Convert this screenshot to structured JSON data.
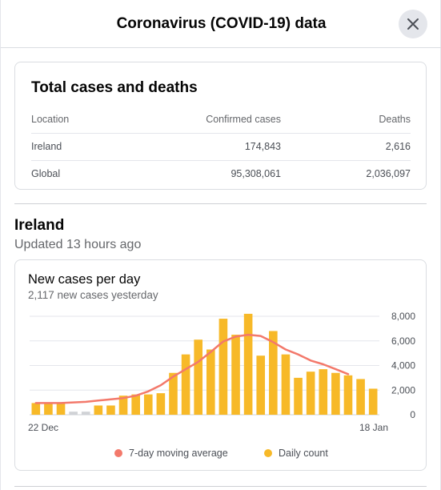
{
  "header": {
    "title": "Coronavirus (COVID-19) data",
    "close_icon": "close-icon"
  },
  "totals": {
    "title": "Total cases and deaths",
    "columns": [
      "Location",
      "Confirmed cases",
      "Deaths"
    ],
    "rows": [
      {
        "location": "Ireland",
        "confirmed": "174,843",
        "deaths": "2,616"
      },
      {
        "location": "Global",
        "confirmed": "95,308,061",
        "deaths": "2,036,097"
      }
    ]
  },
  "region": {
    "name": "Ireland",
    "updated": "Updated 13 hours ago"
  },
  "chart": {
    "title": "New cases per day",
    "subtitle": "2,117 new cases yesterday",
    "legend_avg": "7-day moving average",
    "legend_daily": "Daily count"
  },
  "chart_data": {
    "type": "bar",
    "title": "New cases per day",
    "x_start_label": "22 Dec",
    "x_end_label": "18 Jan",
    "ylim": [
      0,
      8000
    ],
    "y_ticks": [
      0,
      2000,
      4000,
      6000,
      8000
    ],
    "y_tick_labels": [
      "0",
      "2,000",
      "4,000",
      "6,000",
      "8,000"
    ],
    "grid": true,
    "legend_position": "bottom",
    "colors": {
      "daily": "#f7b928",
      "daily_missing": "#d0d2d6",
      "avg": "#f3796b"
    },
    "series": [
      {
        "name": "Daily count",
        "values": [
          950,
          950,
          950,
          250,
          250,
          750,
          750,
          1550,
          1650,
          1650,
          1750,
          3400,
          4900,
          6100,
          5300,
          7800,
          6500,
          8200,
          4800,
          6800,
          4900,
          3000,
          3500,
          3700,
          3400,
          3200,
          2900,
          2117
        ],
        "missing": [
          false,
          false,
          false,
          true,
          true,
          false,
          false,
          false,
          false,
          false,
          false,
          false,
          false,
          false,
          false,
          false,
          false,
          false,
          false,
          false,
          false,
          false,
          false,
          false,
          false,
          false,
          false,
          false
        ]
      },
      {
        "name": "7-day moving average",
        "values": [
          950,
          950,
          950,
          1000,
          1050,
          1150,
          1250,
          1350,
          1550,
          1900,
          2400,
          3100,
          3700,
          4300,
          5100,
          5950,
          6350,
          6500,
          6400,
          5900,
          5300,
          4900,
          4400,
          4100,
          3700,
          3300,
          null,
          null
        ]
      }
    ]
  }
}
